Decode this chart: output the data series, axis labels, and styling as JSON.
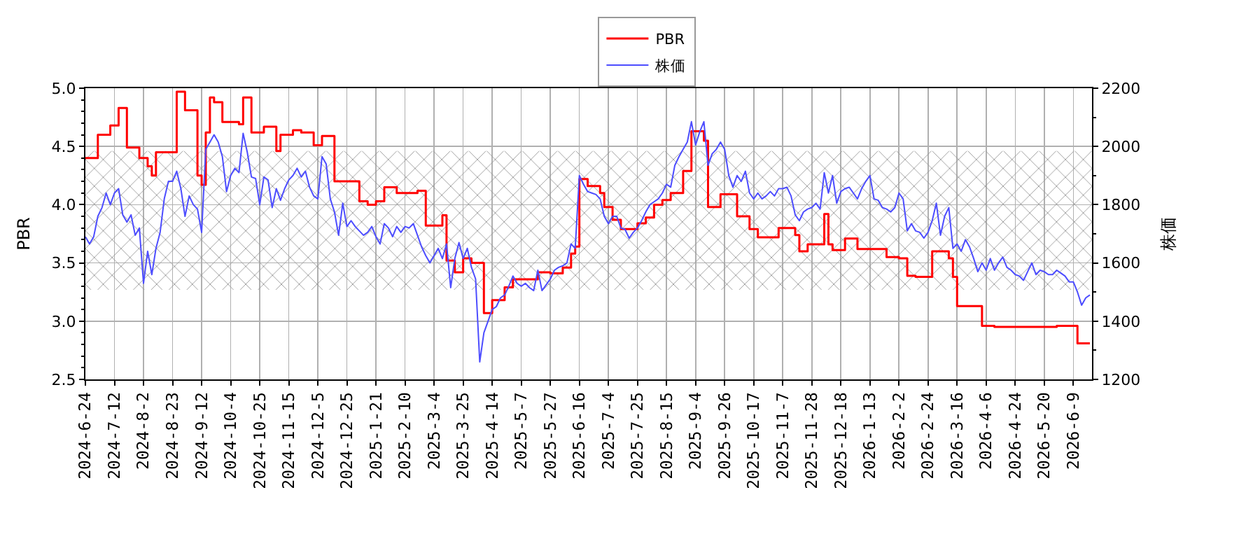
{
  "chart_data": {
    "type": "line",
    "ylabel": "PBR",
    "y2label": "株価",
    "categories": [
      "2024-6-24",
      null,
      null,
      null,
      null,
      null,
      null,
      "2024-7-12",
      null,
      null,
      null,
      null,
      null,
      null,
      "2024-8-2",
      null,
      null,
      null,
      null,
      null,
      null,
      "2024-8-23",
      null,
      null,
      null,
      null,
      null,
      null,
      "2024-9-12",
      null,
      null,
      null,
      null,
      null,
      null,
      "2024-10-4",
      null,
      null,
      null,
      null,
      null,
      null,
      "2024-10-25",
      null,
      null,
      null,
      null,
      null,
      null,
      "2024-11-15",
      null,
      null,
      null,
      null,
      null,
      null,
      "2024-12-5",
      null,
      null,
      null,
      null,
      null,
      null,
      "2024-12-25",
      null,
      null,
      null,
      null,
      null,
      null,
      "2025-1-21",
      null,
      null,
      null,
      null,
      null,
      null,
      "2025-2-10",
      null,
      null,
      null,
      null,
      null,
      null,
      "2025-3-4",
      null,
      null,
      null,
      null,
      null,
      null,
      "2025-3-25",
      null,
      null,
      null,
      null,
      null,
      null,
      "2025-4-14",
      null,
      null,
      null,
      null,
      null,
      null,
      "2025-5-7",
      null,
      null,
      null,
      null,
      null,
      null,
      "2025-5-27",
      null,
      null,
      null,
      null,
      null,
      null,
      "2025-6-16",
      null,
      null,
      null,
      null,
      null,
      null,
      "2025-7-4",
      null,
      null,
      null,
      null,
      null,
      null,
      "2025-7-25",
      null,
      null,
      null,
      null,
      null,
      null,
      "2025-8-15",
      null,
      null,
      null,
      null,
      null,
      null,
      "2025-9-4",
      null,
      null,
      null,
      null,
      null,
      null,
      "2025-9-26",
      null,
      null,
      null,
      null,
      null,
      null,
      "2025-10-17",
      null,
      null,
      null,
      null,
      null,
      null,
      "2025-11-7",
      null,
      null,
      null,
      null,
      null,
      null,
      "2025-11-28",
      null,
      null,
      null,
      null,
      null,
      null,
      "2025-12-18",
      null,
      null,
      null,
      null,
      null,
      null,
      "2026-1-13",
      null,
      null,
      null,
      null,
      null,
      null,
      "2026-2-2",
      null,
      null,
      null,
      null,
      null,
      null,
      "2026-2-24",
      null,
      null,
      null,
      null,
      null,
      null,
      "2026-3-16",
      null,
      null,
      null,
      null,
      null,
      null,
      "2026-4-6",
      null,
      null,
      null,
      null,
      null,
      null,
      "2026-4-24",
      null,
      null,
      null,
      null,
      null,
      null,
      "2026-5-20",
      null,
      null,
      null,
      null,
      null,
      null,
      "2026-6-9",
      null,
      null,
      null,
      null
    ],
    "ylim": [
      2.5,
      5.0
    ],
    "yticks": [
      2.5,
      {
        "value": 3,
        "label": "3.0"
      },
      3.5,
      {
        "value": 4,
        "label": "4.0"
      },
      4.5,
      {
        "value": 5,
        "label": "5.0"
      },
      {
        "value": 2.6,
        "label": null
      },
      {
        "value": 2.7,
        "label": null
      },
      {
        "value": 2.8,
        "label": null
      },
      {
        "value": 2.9,
        "label": null
      },
      {
        "value": 3.1,
        "label": null
      },
      {
        "value": 3.2,
        "label": null
      },
      {
        "value": 3.3,
        "label": null
      },
      {
        "value": 3.4,
        "label": null
      },
      {
        "value": 3.6,
        "label": null
      },
      {
        "value": 3.7,
        "label": null
      },
      {
        "value": 3.8,
        "label": null
      },
      {
        "value": 3.9,
        "label": null
      },
      {
        "value": 4.1,
        "label": null
      },
      {
        "value": 4.2,
        "label": null
      },
      {
        "value": 4.3,
        "label": null
      },
      {
        "value": 4.4,
        "label": null
      },
      {
        "value": 4.6,
        "label": null
      },
      {
        "value": 4.7,
        "label": null
      },
      {
        "value": 4.8,
        "label": null
      },
      {
        "value": 4.9,
        "label": null
      }
    ],
    "y2lim": [
      1200,
      2200
    ],
    "y2ticks": [
      1200,
      1400,
      1600,
      1800,
      2000,
      2200,
      {
        "value": 1300,
        "label": null
      },
      {
        "value": 1500,
        "label": null
      },
      {
        "value": 1700,
        "label": null
      },
      {
        "value": 1900,
        "label": null
      },
      {
        "value": 2100,
        "label": null
      }
    ],
    "grid": true,
    "legend": "top",
    "bands": [
      {
        "axis": "y",
        "from": 3.27,
        "to": 4.46,
        "color": "#999999"
      }
    ],
    "series": [
      {
        "name": "PBR",
        "type": "step",
        "color": "#ff0000",
        "values": [
          4.4,
          4.4,
          4.4,
          4.6,
          4.6,
          4.6,
          4.68,
          4.68,
          4.83,
          4.83,
          4.49,
          4.49,
          4.49,
          4.4,
          4.4,
          4.33,
          4.25,
          4.45,
          4.45,
          4.45,
          4.45,
          4.45,
          4.97,
          4.97,
          4.81,
          4.81,
          4.81,
          4.25,
          4.17,
          4.62,
          4.92,
          4.88,
          4.88,
          4.71,
          4.71,
          4.71,
          4.71,
          4.69,
          4.92,
          4.92,
          4.62,
          4.62,
          4.62,
          4.67,
          4.67,
          4.67,
          4.46,
          4.6,
          4.6,
          4.6,
          4.64,
          4.64,
          4.62,
          4.62,
          4.62,
          4.51,
          4.51,
          4.59,
          4.59,
          4.59,
          4.2,
          4.2,
          4.2,
          4.2,
          4.2,
          4.2,
          4.03,
          4.03,
          4.0,
          4.0,
          4.03,
          4.03,
          4.15,
          4.15,
          4.15,
          4.1,
          4.1,
          4.1,
          4.1,
          4.1,
          4.12,
          4.12,
          3.82,
          3.82,
          3.82,
          3.82,
          3.91,
          3.52,
          3.52,
          3.42,
          3.42,
          3.54,
          3.54,
          3.5,
          3.5,
          3.5,
          3.07,
          3.07,
          3.18,
          3.18,
          3.18,
          3.29,
          3.29,
          3.36,
          3.36,
          3.36,
          3.36,
          3.36,
          3.36,
          3.42,
          3.42,
          3.42,
          3.41,
          3.41,
          3.41,
          3.46,
          3.46,
          3.58,
          3.64,
          4.22,
          4.22,
          4.16,
          4.16,
          4.16,
          4.1,
          3.98,
          3.98,
          3.87,
          3.87,
          3.79,
          3.79,
          3.79,
          3.79,
          3.84,
          3.84,
          3.89,
          3.89,
          4.0,
          4.0,
          4.04,
          4.04,
          4.1,
          4.1,
          4.1,
          4.29,
          4.29,
          4.63,
          4.63,
          4.63,
          4.55,
          3.98,
          3.98,
          3.98,
          4.09,
          4.09,
          4.09,
          4.09,
          3.9,
          3.9,
          3.9,
          3.79,
          3.79,
          3.72,
          3.72,
          3.72,
          3.72,
          3.72,
          3.8,
          3.8,
          3.8,
          3.8,
          3.74,
          3.6,
          3.6,
          3.66,
          3.66,
          3.66,
          3.66,
          3.92,
          3.66,
          3.61,
          3.61,
          3.61,
          3.71,
          3.71,
          3.71,
          3.62,
          3.62,
          3.62,
          3.62,
          3.62,
          3.62,
          3.62,
          3.55,
          3.55,
          3.55,
          3.54,
          3.54,
          3.39,
          3.39,
          3.38,
          3.38,
          3.38,
          3.38,
          3.6,
          3.6,
          3.6,
          3.6,
          3.54,
          3.38,
          3.13,
          3.13,
          3.13,
          3.13,
          3.13,
          3.13,
          2.96,
          2.96,
          2.96,
          2.95,
          2.95,
          2.95,
          2.95,
          2.95,
          2.95,
          2.95,
          2.95,
          2.95,
          2.95,
          2.95,
          2.95,
          2.95,
          2.95,
          2.95,
          2.96,
          2.96,
          2.96,
          2.96,
          2.96,
          2.81,
          2.81,
          2.81,
          2.81
        ]
      },
      {
        "name": "株価",
        "color": "#4d4dff",
        "axis": "y2",
        "values": [
          1690,
          1665,
          1690,
          1760,
          1790,
          1840,
          1800,
          1840,
          1855,
          1765,
          1740,
          1765,
          1695,
          1720,
          1530,
          1640,
          1560,
          1650,
          1705,
          1820,
          1880,
          1880,
          1915,
          1855,
          1760,
          1830,
          1800,
          1785,
          1705,
          1990,
          2015,
          2040,
          2015,
          1965,
          1845,
          1900,
          1925,
          1910,
          2045,
          1980,
          1895,
          1890,
          1800,
          1895,
          1885,
          1790,
          1855,
          1815,
          1855,
          1885,
          1900,
          1925,
          1895,
          1915,
          1860,
          1830,
          1820,
          1965,
          1940,
          1820,
          1775,
          1695,
          1805,
          1725,
          1745,
          1725,
          1710,
          1695,
          1705,
          1725,
          1690,
          1665,
          1735,
          1720,
          1690,
          1725,
          1705,
          1725,
          1720,
          1735,
          1695,
          1655,
          1625,
          1600,
          1625,
          1650,
          1615,
          1665,
          1515,
          1615,
          1670,
          1615,
          1650,
          1585,
          1545,
          1260,
          1360,
          1400,
          1440,
          1450,
          1480,
          1490,
          1520,
          1555,
          1530,
          1520,
          1530,
          1515,
          1505,
          1575,
          1505,
          1525,
          1545,
          1575,
          1585,
          1590,
          1600,
          1665,
          1650,
          1900,
          1870,
          1845,
          1840,
          1835,
          1820,
          1760,
          1735,
          1760,
          1760,
          1720,
          1715,
          1685,
          1705,
          1720,
          1745,
          1775,
          1800,
          1810,
          1820,
          1840,
          1870,
          1860,
          1935,
          1965,
          1990,
          2015,
          2085,
          2005,
          2050,
          2085,
          1935,
          1975,
          1990,
          2015,
          1990,
          1900,
          1860,
          1900,
          1880,
          1915,
          1840,
          1820,
          1840,
          1820,
          1830,
          1845,
          1830,
          1855,
          1855,
          1860,
          1830,
          1765,
          1745,
          1775,
          1785,
          1790,
          1805,
          1785,
          1910,
          1840,
          1900,
          1805,
          1845,
          1855,
          1860,
          1840,
          1820,
          1855,
          1880,
          1900,
          1820,
          1815,
          1790,
          1785,
          1775,
          1790,
          1840,
          1820,
          1710,
          1735,
          1710,
          1705,
          1685,
          1705,
          1745,
          1805,
          1695,
          1760,
          1790,
          1650,
          1665,
          1640,
          1680,
          1655,
          1615,
          1570,
          1600,
          1575,
          1615,
          1575,
          1600,
          1620,
          1585,
          1575,
          1560,
          1555,
          1540,
          1570,
          1600,
          1560,
          1575,
          1570,
          1560,
          1560,
          1575,
          1565,
          1555,
          1535,
          1535,
          1500,
          1455,
          1480,
          1490
        ]
      }
    ]
  }
}
